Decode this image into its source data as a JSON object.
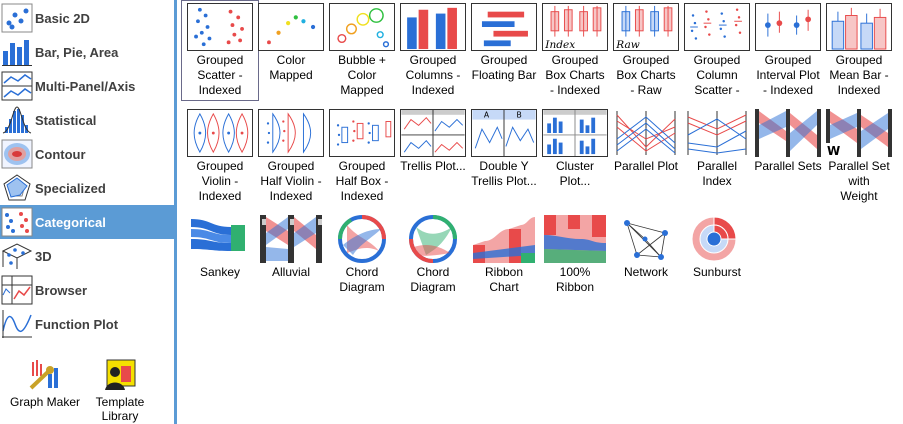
{
  "categories": [
    {
      "label": "Basic 2D"
    },
    {
      "label": "Bar, Pie, Area"
    },
    {
      "label": "Multi-Panel/Axis"
    },
    {
      "label": "Statistical"
    },
    {
      "label": "Contour"
    },
    {
      "label": "Specialized"
    },
    {
      "label": "Categorical",
      "selected": true
    },
    {
      "label": "3D"
    },
    {
      "label": "Browser"
    },
    {
      "label": "Function Plot"
    }
  ],
  "tools": [
    {
      "label": "Graph Maker"
    },
    {
      "label": "Template\nLibrary"
    }
  ],
  "graphs": [
    {
      "label": "Grouped\nScatter -\nIndexed"
    },
    {
      "label": "Color\nMapped"
    },
    {
      "label": "Bubble +\nColor\nMapped"
    },
    {
      "label": "Grouped\nColumns -\nIndexed"
    },
    {
      "label": "Grouped\nFloating Bar"
    },
    {
      "label": "Grouped\nBox Charts\n- Indexed",
      "thumb_text": "Index"
    },
    {
      "label": "Grouped\nBox Charts\n- Raw",
      "thumb_text": "Raw"
    },
    {
      "label": "Grouped\nColumn\nScatter -"
    },
    {
      "label": "Grouped\nInterval Plot\n- Indexed"
    },
    {
      "label": "Grouped\nMean Bar -\nIndexed"
    },
    {
      "label": "Grouped\nViolin -\nIndexed"
    },
    {
      "label": "Grouped\nHalf Violin -\nIndexed"
    },
    {
      "label": "Grouped\nHalf Box -\nIndexed"
    },
    {
      "label": "Trellis Plot..."
    },
    {
      "label": "Double Y\nTrellis Plot...",
      "thumb_a": "A",
      "thumb_b": "B"
    },
    {
      "label": "Cluster\nPlot..."
    },
    {
      "label": "Parallel Plot"
    },
    {
      "label": "Parallel\nIndex"
    },
    {
      "label": "Parallel Sets"
    },
    {
      "label": "Parallel Set\nwith\nWeight",
      "thumb_text": "W"
    },
    {
      "label": "Sankey"
    },
    {
      "label": "Alluvial"
    },
    {
      "label": "Chord\nDiagram"
    },
    {
      "label": "Chord\nDiagram"
    },
    {
      "label": "Ribbon\nChart"
    },
    {
      "label": "100%\nRibbon"
    },
    {
      "label": "Network"
    },
    {
      "label": "Sunburst"
    }
  ],
  "colors": {
    "accent": "#5b9bd5",
    "red": "#e84a4a",
    "blue": "#2a6fd6"
  }
}
